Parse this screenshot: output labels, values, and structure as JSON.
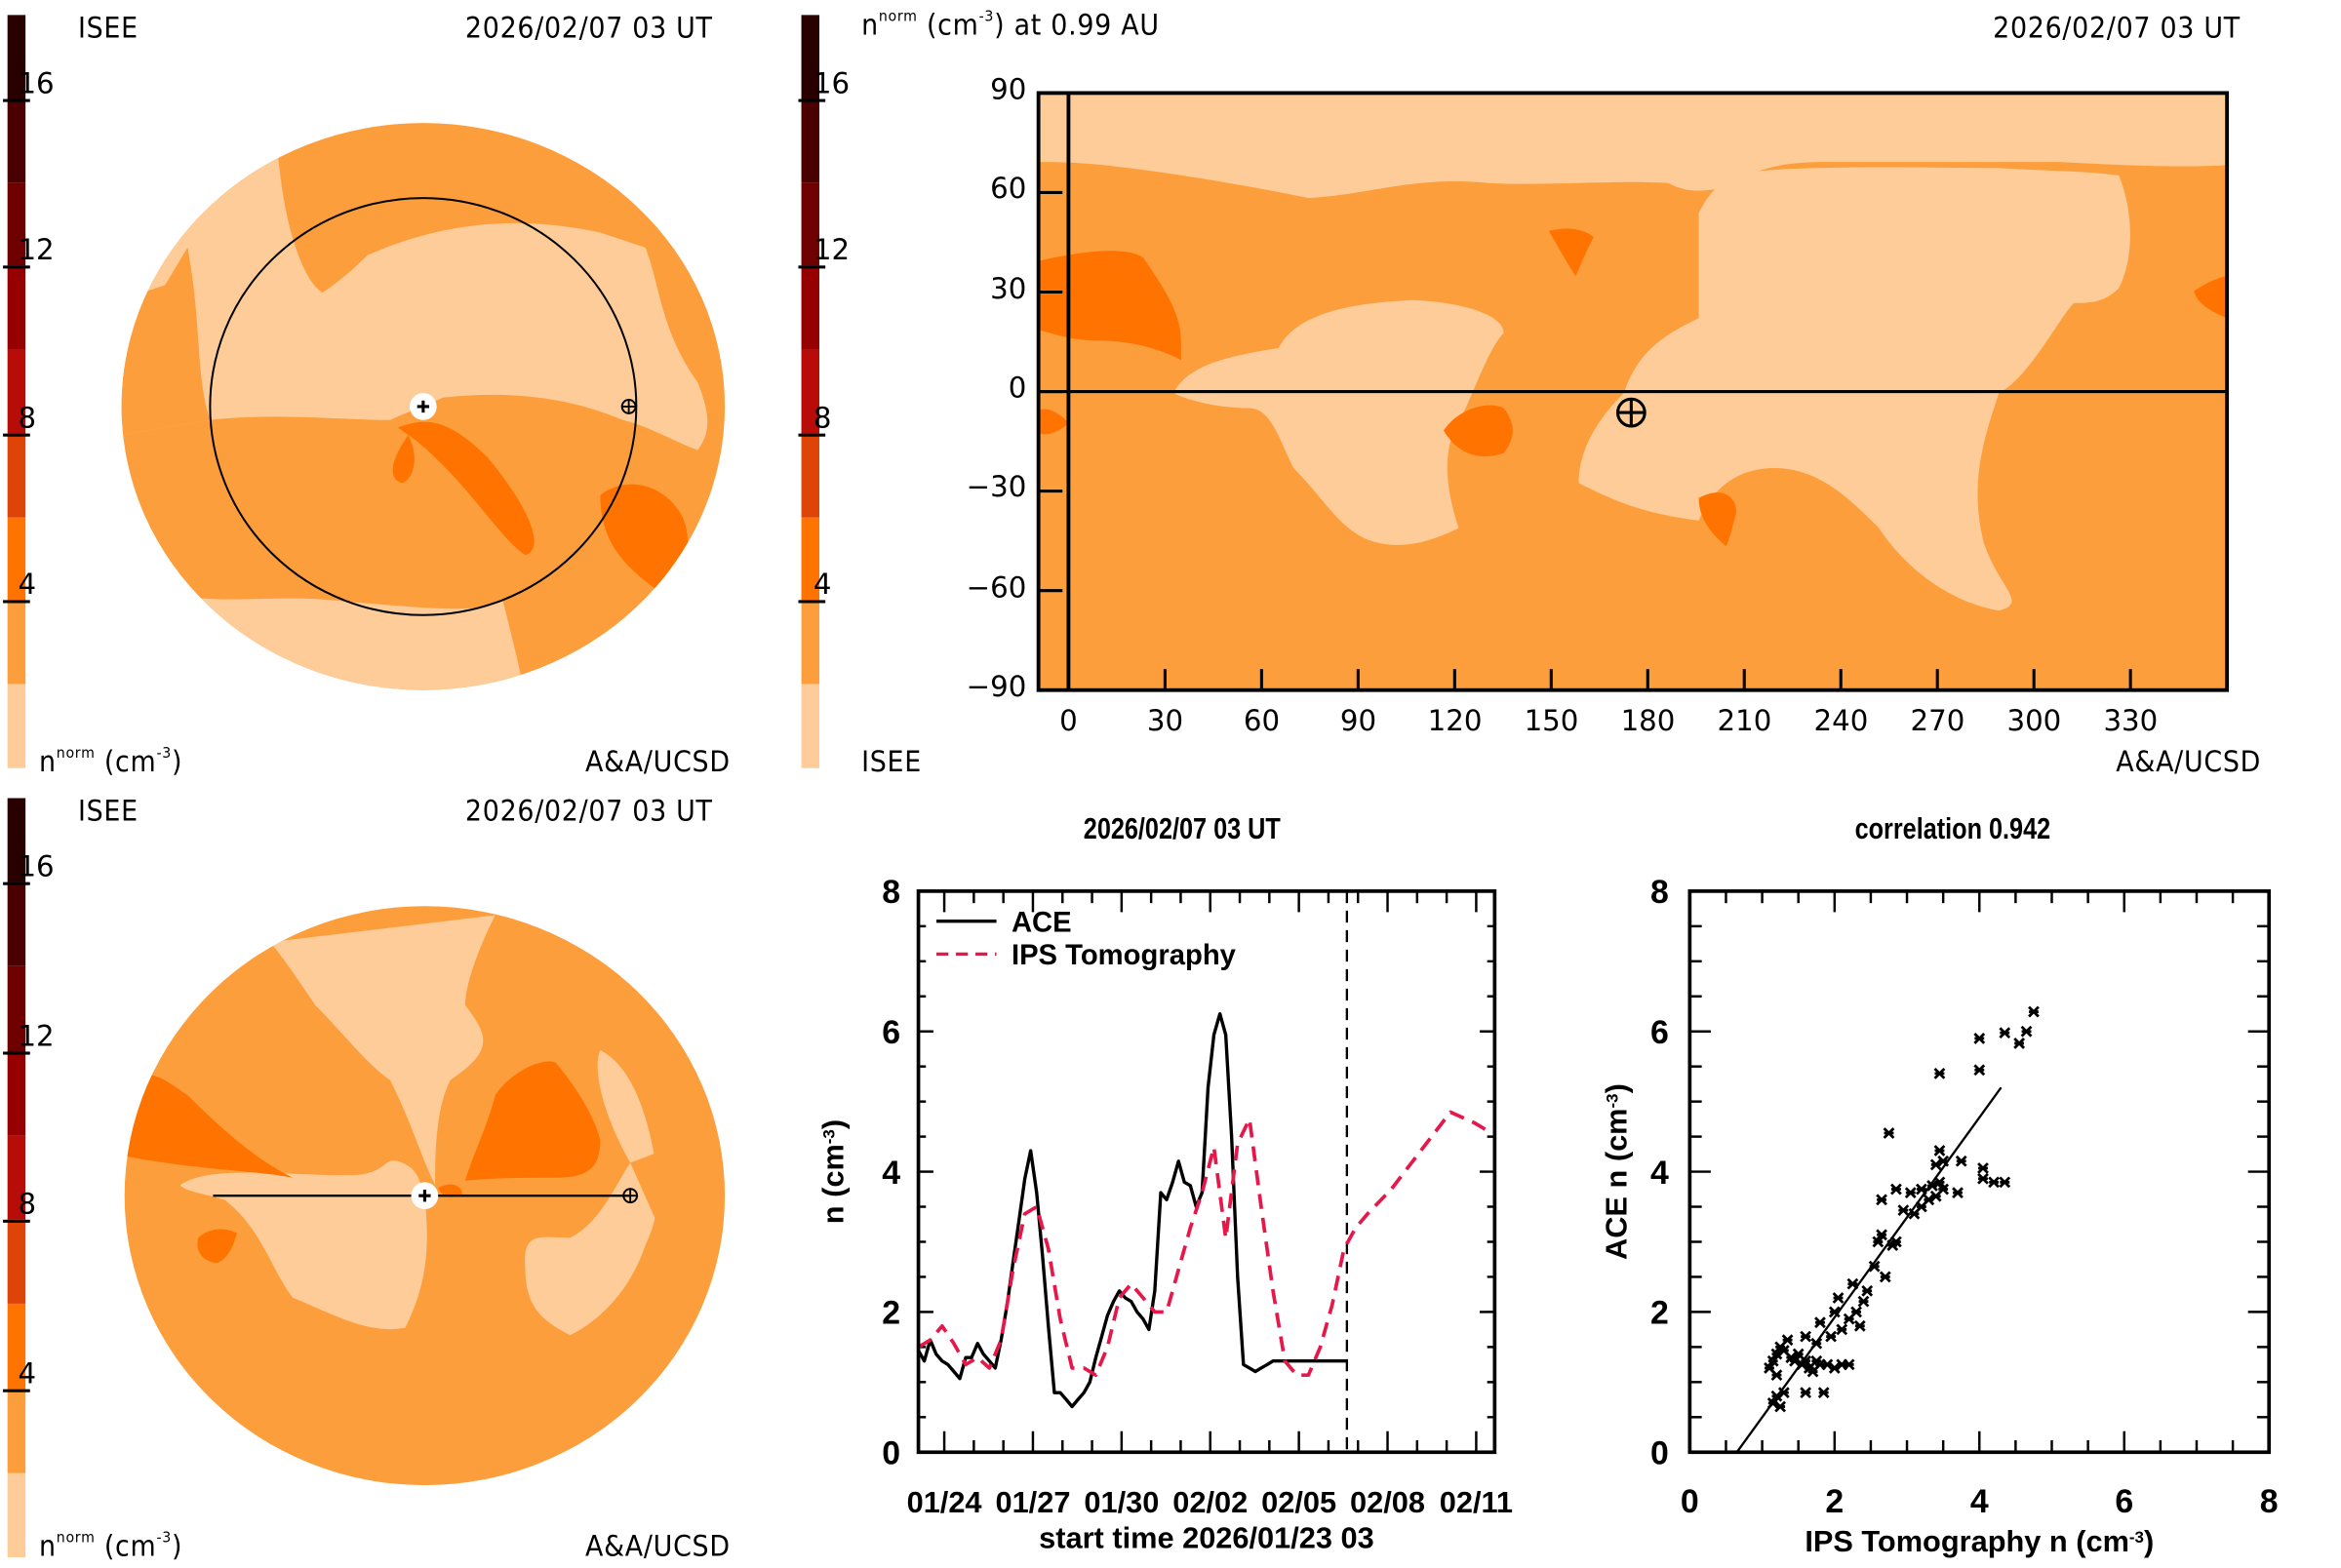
{
  "panels": {
    "top_left": {
      "org_label": "ISEE",
      "timestamp": "2026/02/07 03 UT",
      "unit_label_n": "n",
      "unit_label_sup": "norm",
      "unit_label_rest": "(cm",
      "unit_label_exp": "-3",
      "unit_label_close": ")",
      "credit": "A&A/UCSD",
      "view": "ecliptic plane (top-down)"
    },
    "top_right": {
      "title_n": "n",
      "title_sup": "norm",
      "title_rest": "(cm",
      "title_exp": "-3",
      "title_tail": ") at 0.99 AU",
      "timestamp": "2026/02/07 03 UT",
      "org_label": "ISEE",
      "credit": "A&A/UCSD",
      "x_ticks": [
        "0",
        "30",
        "60",
        "90",
        "120",
        "150",
        "180",
        "210",
        "240",
        "270",
        "300",
        "330"
      ],
      "y_ticks": [
        "90",
        "60",
        "30",
        "0",
        "−30",
        "−60",
        "−90"
      ]
    },
    "bottom_left": {
      "org_label": "ISEE",
      "timestamp": "2026/02/07 03 UT",
      "unit_label_n": "n",
      "unit_label_sup": "norm",
      "unit_label_rest": "(cm",
      "unit_label_exp": "-3",
      "unit_label_close": ")",
      "credit": "A&A/UCSD",
      "view": "meridional cut (side view)"
    }
  },
  "colorbar": {
    "ticks": [
      "16",
      "12",
      "8",
      "4"
    ],
    "bands_bottom_to_top": [
      "#FDCC99",
      "#FD9E3C",
      "#FF7300",
      "#DE4408",
      "#B80C08",
      "#960000",
      "#6E0000",
      "#4A0000",
      "#280000"
    ],
    "range": [
      0,
      18
    ]
  },
  "chart_data": [
    {
      "type": "line",
      "title": "2026/02/07 03 UT",
      "xlabel": "start time 2026/01/23 03",
      "ylabel": "n (cm",
      "ylabel_exp": "-3",
      "ylabel_close": ")",
      "x_units": "days since start",
      "xlim": [
        0,
        19.5
      ],
      "ylim": [
        0,
        8
      ],
      "x_tick_labels": [
        "01/24",
        "01/27",
        "01/30",
        "02/02",
        "02/05",
        "02/08",
        "02/11"
      ],
      "x_tick_days": [
        0.875,
        3.875,
        6.875,
        9.875,
        12.875,
        15.875,
        18.875
      ],
      "y_ticks": [
        "0",
        "2",
        "4",
        "6",
        "8"
      ],
      "now_marker_day": 14.5,
      "legend": [
        {
          "name": "ACE",
          "style": "solid",
          "color": "#000000"
        },
        {
          "name": "IPS Tomography",
          "style": "dashed",
          "color": "#E8174A"
        }
      ],
      "legend_position": "top-left",
      "series": [
        {
          "name": "ACE",
          "x": [
            0,
            0.2,
            0.4,
            0.6,
            0.8,
            1.0,
            1.2,
            1.4,
            1.6,
            1.8,
            2.0,
            2.2,
            2.4,
            2.6,
            2.8,
            3.0,
            3.2,
            3.4,
            3.6,
            3.8,
            4.0,
            4.2,
            4.4,
            4.6,
            4.8,
            5.0,
            5.2,
            5.4,
            5.6,
            5.8,
            6.0,
            6.2,
            6.4,
            6.6,
            6.8,
            7.0,
            7.2,
            7.4,
            7.6,
            7.8,
            8.0,
            8.2,
            8.4,
            8.6,
            8.8,
            9.0,
            9.2,
            9.4,
            9.6,
            9.8,
            10.0,
            10.2,
            10.4,
            10.6,
            10.8,
            11.0,
            11.2,
            11.4,
            11.6,
            11.8,
            12.0,
            12.2,
            12.4,
            12.6,
            12.8,
            13.0,
            13.2,
            13.4,
            13.6,
            13.8,
            14.0,
            14.2,
            14.5
          ],
          "y": [
            1.45,
            1.3,
            1.6,
            1.4,
            1.3,
            1.25,
            1.15,
            1.05,
            1.35,
            1.35,
            1.55,
            1.4,
            1.3,
            1.2,
            1.6,
            2.1,
            2.7,
            3.3,
            3.9,
            4.3,
            3.7,
            2.8,
            1.8,
            0.85,
            0.85,
            0.75,
            0.65,
            0.75,
            0.85,
            1.0,
            1.35,
            1.65,
            1.95,
            2.15,
            2.3,
            2.2,
            2.15,
            2.0,
            1.9,
            1.75,
            2.3,
            3.7,
            3.6,
            3.85,
            4.15,
            3.85,
            3.8,
            3.5,
            3.7,
            5.2,
            5.95,
            6.25,
            5.95,
            4.5,
            2.5,
            1.25,
            1.2,
            1.15,
            1.2,
            1.25,
            1.3,
            1.3,
            1.3,
            1.3,
            1.3,
            1.3,
            1.3,
            1.3,
            1.3,
            1.3,
            1.3,
            1.3,
            1.3
          ]
        },
        {
          "name": "IPS Tomography",
          "x": [
            0,
            0.4,
            0.8,
            1.2,
            1.6,
            2.0,
            2.4,
            2.8,
            3.2,
            3.6,
            4.0,
            4.4,
            4.8,
            5.2,
            5.6,
            6.0,
            6.4,
            6.8,
            7.2,
            7.6,
            8.0,
            8.4,
            8.8,
            9.2,
            9.6,
            10.0,
            10.4,
            10.8,
            11.2,
            11.6,
            12.0,
            12.4,
            12.8,
            13.2,
            13.6,
            14.0,
            14.4,
            14.8,
            15.2,
            16.0,
            17.0,
            18.0,
            18.8,
            19.2
          ],
          "y": [
            1.5,
            1.6,
            1.8,
            1.55,
            1.25,
            1.35,
            1.2,
            1.6,
            2.6,
            3.4,
            3.5,
            2.9,
            1.9,
            1.2,
            1.2,
            1.1,
            1.5,
            2.2,
            2.4,
            2.2,
            2.0,
            2.0,
            2.6,
            3.2,
            3.7,
            4.35,
            3.05,
            4.4,
            4.75,
            3.5,
            2.3,
            1.3,
            1.1,
            1.1,
            1.5,
            2.1,
            2.9,
            3.2,
            3.4,
            3.75,
            4.3,
            4.85,
            4.7,
            4.6
          ]
        }
      ]
    },
    {
      "type": "scatter",
      "title": "correlation 0.942",
      "xlabel": "IPS Tomography n (cm",
      "xlabel_exp": "-3",
      "xlabel_close": ")",
      "ylabel": "ACE n (cm",
      "ylabel_exp": "-3",
      "ylabel_close": ")",
      "xlim": [
        0,
        8
      ],
      "ylim": [
        0,
        8
      ],
      "x_ticks": [
        "0",
        "2",
        "4",
        "6",
        "8"
      ],
      "y_ticks": [
        "0",
        "2",
        "4",
        "6",
        "8"
      ],
      "marker": "asterisk",
      "fit_line": {
        "x": [
          0.65,
          4.3
        ],
        "y": [
          0.0,
          5.2
        ]
      },
      "points": [
        [
          1.1,
          1.2
        ],
        [
          1.15,
          1.3
        ],
        [
          1.2,
          1.1
        ],
        [
          1.2,
          1.4
        ],
        [
          1.25,
          1.5
        ],
        [
          1.3,
          1.45
        ],
        [
          1.35,
          1.6
        ],
        [
          1.4,
          1.35
        ],
        [
          1.45,
          1.3
        ],
        [
          1.5,
          1.4
        ],
        [
          1.55,
          1.25
        ],
        [
          1.6,
          1.3
        ],
        [
          1.65,
          1.2
        ],
        [
          1.7,
          1.15
        ],
        [
          1.75,
          1.3
        ],
        [
          1.8,
          1.25
        ],
        [
          1.9,
          1.25
        ],
        [
          2.0,
          1.2
        ],
        [
          2.1,
          1.25
        ],
        [
          2.2,
          1.25
        ],
        [
          1.15,
          0.7
        ],
        [
          1.2,
          0.8
        ],
        [
          1.25,
          0.65
        ],
        [
          1.3,
          0.85
        ],
        [
          1.6,
          0.85
        ],
        [
          1.85,
          0.85
        ],
        [
          1.6,
          1.65
        ],
        [
          1.75,
          1.55
        ],
        [
          1.8,
          1.85
        ],
        [
          1.95,
          1.65
        ],
        [
          2.0,
          2.0
        ],
        [
          2.05,
          2.2
        ],
        [
          2.1,
          1.75
        ],
        [
          2.2,
          1.9
        ],
        [
          2.25,
          2.4
        ],
        [
          2.3,
          2.0
        ],
        [
          2.35,
          1.8
        ],
        [
          2.4,
          2.15
        ],
        [
          2.45,
          2.3
        ],
        [
          2.55,
          2.65
        ],
        [
          2.6,
          3.0
        ],
        [
          2.65,
          3.1
        ],
        [
          2.7,
          2.5
        ],
        [
          2.8,
          2.95
        ],
        [
          2.85,
          3.0
        ],
        [
          2.95,
          3.45
        ],
        [
          3.1,
          3.4
        ],
        [
          3.2,
          3.5
        ],
        [
          3.3,
          3.6
        ],
        [
          3.4,
          3.65
        ],
        [
          2.65,
          3.6
        ],
        [
          2.85,
          3.75
        ],
        [
          3.05,
          3.7
        ],
        [
          3.2,
          3.75
        ],
        [
          3.35,
          3.8
        ],
        [
          3.45,
          3.85
        ],
        [
          3.5,
          3.75
        ],
        [
          3.7,
          3.7
        ],
        [
          3.4,
          4.1
        ],
        [
          3.45,
          4.3
        ],
        [
          3.5,
          4.15
        ],
        [
          3.75,
          4.15
        ],
        [
          4.05,
          3.9
        ],
        [
          4.05,
          4.05
        ],
        [
          4.2,
          3.85
        ],
        [
          4.35,
          3.85
        ],
        [
          2.75,
          4.55
        ],
        [
          3.45,
          5.4
        ],
        [
          4.0,
          5.45
        ],
        [
          4.0,
          5.9
        ],
        [
          4.35,
          5.98
        ],
        [
          4.55,
          5.83
        ],
        [
          4.65,
          6.0
        ],
        [
          4.75,
          6.28
        ]
      ]
    }
  ]
}
